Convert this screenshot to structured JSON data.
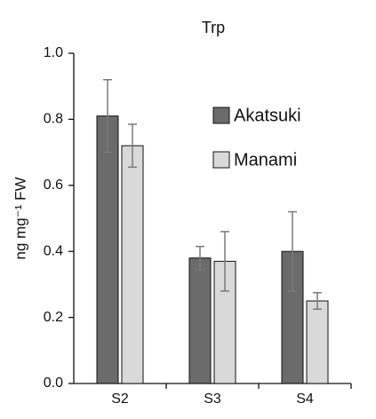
{
  "chart_data": {
    "type": "bar",
    "title": "Trp",
    "y_label": "ng mg⁻¹ FW",
    "categories": [
      "S2",
      "S3",
      "S4"
    ],
    "series": [
      {
        "name": "Akatsuki",
        "color": "#6b6b6b",
        "values": [
          0.81,
          0.38,
          0.4
        ],
        "errors": [
          0.11,
          0.035,
          0.12
        ]
      },
      {
        "name": "Manami",
        "color": "#d9d9d9",
        "values": [
          0.72,
          0.37,
          0.25
        ],
        "errors": [
          0.065,
          0.09,
          0.025
        ]
      }
    ],
    "ylim": [
      0,
      1.0
    ],
    "yticks": [
      {
        "value": 0,
        "label": "0.0"
      },
      0.2,
      0.4,
      0.6,
      0.8,
      {
        "value": 1.0,
        "label": "1.0"
      }
    ],
    "legend": "upper right"
  }
}
